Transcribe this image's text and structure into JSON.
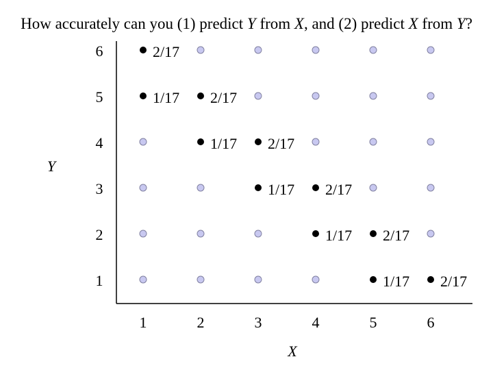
{
  "title": {
    "p1": "How accurately can you (1) predict ",
    "v1": "Y",
    "p2": " from ",
    "v2": "X",
    "p3": ", and (2) predict ",
    "v3": "X",
    "p4": " from ",
    "v4": "Y",
    "p5": "?"
  },
  "axes": {
    "x_label": "X",
    "y_label": "Y",
    "x_ticks": [
      "1",
      "2",
      "3",
      "4",
      "5",
      "6"
    ],
    "y_ticks": [
      "1",
      "2",
      "3",
      "4",
      "5",
      "6"
    ]
  },
  "colors": {
    "empty_point_fill": "#c8c8f0",
    "empty_point_stroke": "#8080a0",
    "filled_point": "#000000"
  },
  "chart_data": {
    "type": "scatter",
    "x_range": [
      1,
      6
    ],
    "y_range": [
      1,
      6
    ],
    "points": [
      {
        "x": 1,
        "y": 6,
        "label": "2/17"
      },
      {
        "x": 1,
        "y": 5,
        "label": "1/17"
      },
      {
        "x": 2,
        "y": 5,
        "label": "2/17"
      },
      {
        "x": 2,
        "y": 4,
        "label": "1/17"
      },
      {
        "x": 3,
        "y": 4,
        "label": "2/17"
      },
      {
        "x": 3,
        "y": 3,
        "label": "1/17"
      },
      {
        "x": 4,
        "y": 3,
        "label": "2/17"
      },
      {
        "x": 4,
        "y": 2,
        "label": "1/17"
      },
      {
        "x": 5,
        "y": 2,
        "label": "2/17"
      },
      {
        "x": 5,
        "y": 1,
        "label": "1/17"
      },
      {
        "x": 6,
        "y": 1,
        "label": "2/17"
      }
    ]
  }
}
